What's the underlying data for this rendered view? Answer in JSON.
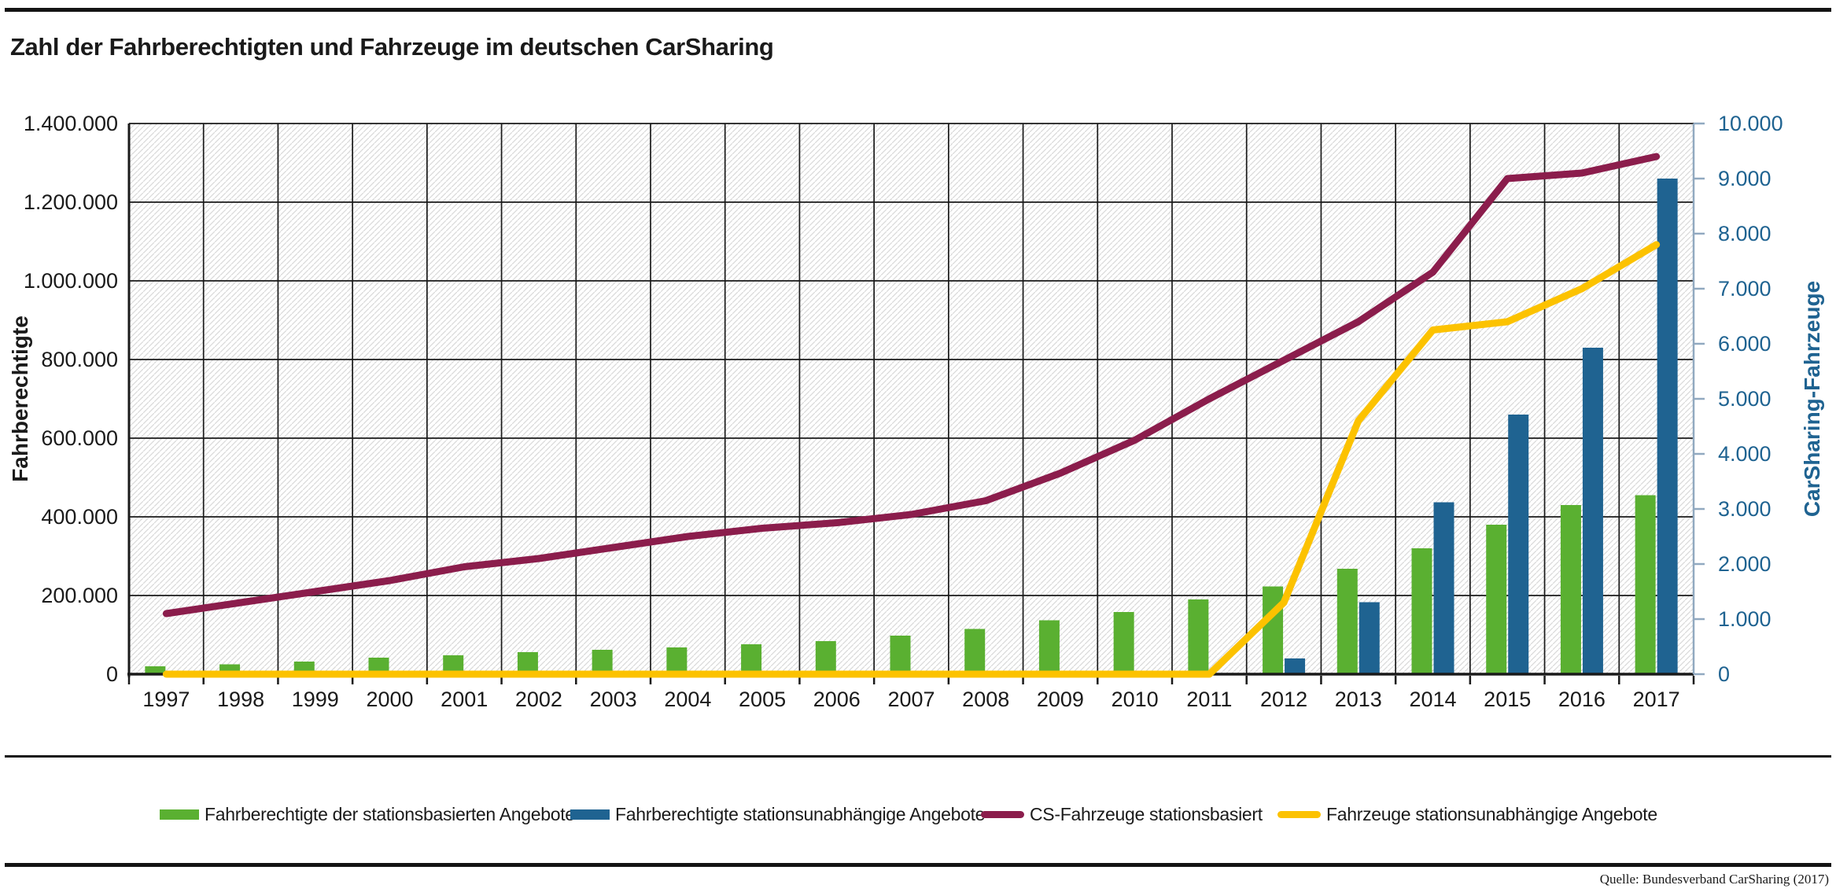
{
  "page": {
    "title": "Zahl der Fahrberechtigten und Fahrzeuge im deutschen CarSharing",
    "source": "Quelle: Bundesverband CarSharing (2017)"
  },
  "colors": {
    "green": "#5ab031",
    "blue": "#1f6391",
    "maroon": "#8b1d4c",
    "yellow": "#fcc200",
    "grid": "#1a1a1a",
    "hatch": "#d9d9d9",
    "right_axis_line": "#91a9c0",
    "right_axis_text": "#1f6391"
  },
  "chart_data": {
    "type": "bar+line combo, dual axis",
    "x": [
      1997,
      1998,
      1999,
      2000,
      2001,
      2002,
      2003,
      2004,
      2005,
      2006,
      2007,
      2008,
      2009,
      2010,
      2011,
      2012,
      2013,
      2014,
      2015,
      2016,
      2017
    ],
    "left_axis": {
      "title": "Fahrberechtigte",
      "min": 0,
      "max": 1400000,
      "tick_step": 200000,
      "tick_labels": [
        "0",
        "200.000",
        "400.000",
        "600.000",
        "800.000",
        "1.000.000",
        "1.200.000",
        "1.400.000"
      ]
    },
    "right_axis": {
      "title": "CarSharing-Fahrzeuge",
      "min": 0,
      "max": 10000,
      "tick_step": 1000,
      "tick_labels": [
        "0",
        "1.000",
        "2.000",
        "3.000",
        "4.000",
        "5.000",
        "6.000",
        "7.000",
        "8.000",
        "9.000",
        "10.000"
      ]
    },
    "grid": "on, hatched plot background, vertical line per year slot",
    "series": [
      {
        "name": "Fahrberechtigte der stationsbasierten Angebote",
        "type": "bar",
        "axis": "left",
        "color_key": "green",
        "values": [
          20000,
          25000,
          32000,
          42000,
          48000,
          56000,
          62000,
          68000,
          76000,
          84000,
          98000,
          115000,
          137000,
          158000,
          190000,
          223000,
          268000,
          320000,
          380000,
          430000,
          455000
        ]
      },
      {
        "name": "Fahrberechtigte stationsunabhängige Angebote",
        "type": "bar",
        "axis": "left",
        "color_key": "blue",
        "values": [
          null,
          null,
          null,
          null,
          null,
          null,
          null,
          null,
          null,
          null,
          null,
          null,
          null,
          null,
          null,
          40000,
          183000,
          437000,
          660000,
          830000,
          1260000
        ]
      },
      {
        "name": "CS-Fahrzeuge stationsbasiert",
        "type": "line",
        "axis": "right",
        "color_key": "maroon",
        "values": [
          1100,
          1300,
          1500,
          1700,
          1950,
          2100,
          2300,
          2500,
          2650,
          2750,
          2900,
          3150,
          3650,
          4250,
          5000,
          5700,
          6400,
          7300,
          9000,
          9100,
          9400
        ]
      },
      {
        "name": "Fahrzeuge stationsunabhängige Angebote",
        "type": "line",
        "axis": "right",
        "color_key": "yellow",
        "values": [
          0,
          0,
          0,
          0,
          0,
          0,
          0,
          0,
          0,
          0,
          0,
          0,
          0,
          0,
          0,
          1300,
          4600,
          6250,
          6400,
          7000,
          7800
        ]
      }
    ],
    "legend_position": "bottom row, horizontal"
  },
  "legend": {
    "items": [
      {
        "label": "Fahrberechtigte der stationsbasierten Angebote",
        "color_key": "green",
        "swatch": "rect"
      },
      {
        "label": "Fahrberechtigte stationsunabhängige Angebote",
        "color_key": "blue",
        "swatch": "rect"
      },
      {
        "label": "CS-Fahrzeuge stationsbasiert",
        "color_key": "maroon",
        "swatch": "line"
      },
      {
        "label": "Fahrzeuge stationsunabhängige Angebote",
        "color_key": "yellow",
        "swatch": "line"
      }
    ]
  }
}
